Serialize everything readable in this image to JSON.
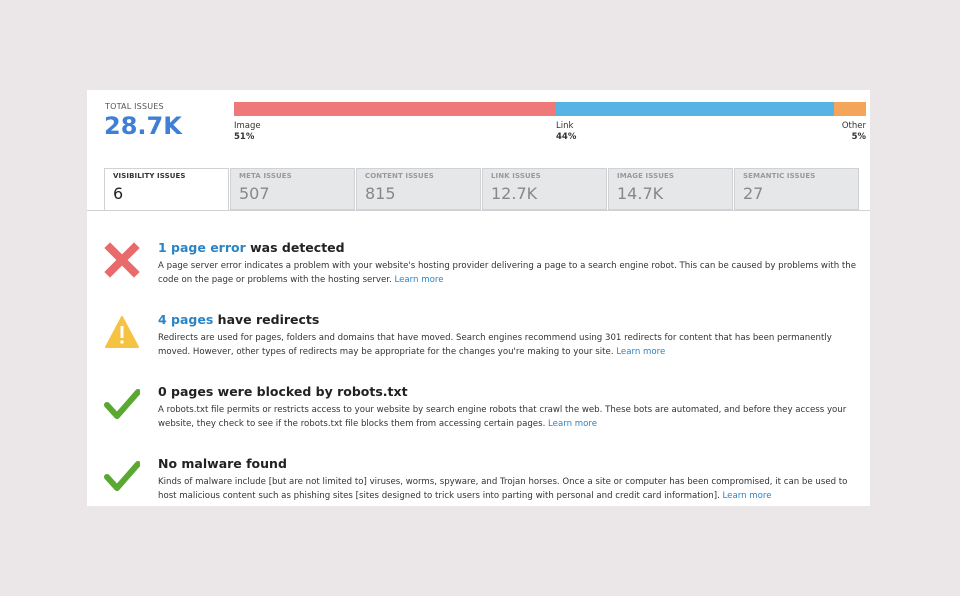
{
  "summary": {
    "total_label": "TOTAL ISSUES",
    "total_value": "28.7K",
    "segments": [
      {
        "name": "Image",
        "percent": 51,
        "percent_label": "51%",
        "color": "#ef7878"
      },
      {
        "name": "Link",
        "percent": 44,
        "percent_label": "44%",
        "color": "#56b3e3"
      },
      {
        "name": "Other",
        "percent": 5,
        "percent_label": "5%",
        "color": "#f5a55a"
      }
    ]
  },
  "tabs": [
    {
      "label": "VISIBILITY ISSUES",
      "count": "6",
      "active": true
    },
    {
      "label": "META ISSUES",
      "count": "507",
      "active": false
    },
    {
      "label": "CONTENT ISSUES",
      "count": "815",
      "active": false
    },
    {
      "label": "LINK ISSUES",
      "count": "12.7K",
      "active": false
    },
    {
      "label": "IMAGE ISSUES",
      "count": "14.7K",
      "active": false
    },
    {
      "label": "SEMANTIC ISSUES",
      "count": "27",
      "active": false
    }
  ],
  "issues": [
    {
      "icon": "error-x-icon",
      "title_highlight": "1 page error",
      "title_rest": " was detected",
      "description": "A page server error indicates a problem with your website's hosting provider delivering a page to a search engine robot. This can be caused by problems with the code on the page or problems with the hosting server.",
      "learn_more": "Learn more"
    },
    {
      "icon": "warning-triangle-icon",
      "title_highlight": "4 pages",
      "title_rest": " have redirects",
      "description": "Redirects are used for pages, folders and domains that have moved. Search engines recommend using 301 redirects for content that has been permanently moved. However, other types of redirects may be appropriate for the changes you're making to your site.",
      "learn_more": "Learn more"
    },
    {
      "icon": "checkmark-icon",
      "title_highlight": "",
      "title_rest": "0 pages were blocked by robots.txt",
      "description": "A robots.txt file permits or restricts access to your website by search engine robots that crawl the web. These bots are automated, and before they access your website, they check to see if the robots.txt file blocks them from accessing certain pages.",
      "learn_more": "Learn more"
    },
    {
      "icon": "checkmark-icon",
      "title_highlight": "",
      "title_rest": "No malware found",
      "description": "Kinds of malware include [but are not limited to] viruses, worms, spyware, and Trojan horses. Once a site or computer has been compromised, it can be used to host malicious content such as phishing sites [sites designed to trick users into parting with personal and credit card information].",
      "learn_more": "Learn more"
    }
  ]
}
